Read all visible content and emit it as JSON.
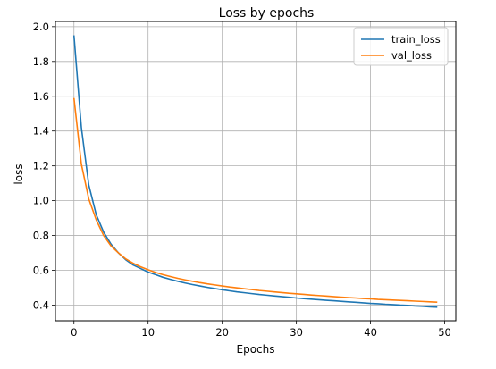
{
  "chart_data": {
    "type": "line",
    "title": "Loss by epochs",
    "xlabel": "Epochs",
    "ylabel": "loss",
    "xlim": [
      -2.5,
      51.5
    ],
    "ylim": [
      0.31,
      2.03
    ],
    "xticks": [
      0,
      10,
      20,
      30,
      40,
      50
    ],
    "yticks": [
      0.4,
      0.6,
      0.8,
      1.0,
      1.2,
      1.4,
      1.6,
      1.8,
      2.0
    ],
    "ytick_labels": [
      "0.4",
      "0.6",
      "0.8",
      "1.0",
      "1.2",
      "1.4",
      "1.6",
      "1.8",
      "2.0"
    ],
    "grid": true,
    "legend_position": "top-right",
    "x": [
      0,
      1,
      2,
      3,
      4,
      5,
      6,
      7,
      8,
      9,
      10,
      11,
      12,
      13,
      14,
      15,
      16,
      17,
      18,
      19,
      20,
      21,
      22,
      23,
      24,
      25,
      26,
      27,
      28,
      29,
      30,
      31,
      32,
      33,
      34,
      35,
      36,
      37,
      38,
      39,
      40,
      41,
      42,
      43,
      44,
      45,
      46,
      47,
      48,
      49
    ],
    "series": [
      {
        "name": "train_loss",
        "color": "#1f77b4",
        "values": [
          1.95,
          1.42,
          1.09,
          0.92,
          0.82,
          0.75,
          0.7,
          0.66,
          0.63,
          0.61,
          0.59,
          0.575,
          0.56,
          0.548,
          0.537,
          0.527,
          0.518,
          0.51,
          0.502,
          0.495,
          0.488,
          0.482,
          0.476,
          0.471,
          0.466,
          0.461,
          0.457,
          0.453,
          0.449,
          0.445,
          0.441,
          0.437,
          0.434,
          0.431,
          0.428,
          0.425,
          0.422,
          0.419,
          0.416,
          0.413,
          0.41,
          0.408,
          0.405,
          0.403,
          0.4,
          0.398,
          0.395,
          0.393,
          0.39,
          0.388
        ]
      },
      {
        "name": "val_loss",
        "color": "#ff7f0e",
        "values": [
          1.59,
          1.21,
          1.01,
          0.89,
          0.8,
          0.74,
          0.7,
          0.665,
          0.64,
          0.62,
          0.603,
          0.588,
          0.575,
          0.564,
          0.554,
          0.545,
          0.537,
          0.529,
          0.522,
          0.516,
          0.51,
          0.504,
          0.499,
          0.494,
          0.489,
          0.484,
          0.48,
          0.476,
          0.472,
          0.468,
          0.465,
          0.462,
          0.458,
          0.455,
          0.452,
          0.449,
          0.446,
          0.443,
          0.441,
          0.438,
          0.436,
          0.433,
          0.431,
          0.429,
          0.427,
          0.425,
          0.423,
          0.421,
          0.419,
          0.417
        ]
      }
    ]
  }
}
